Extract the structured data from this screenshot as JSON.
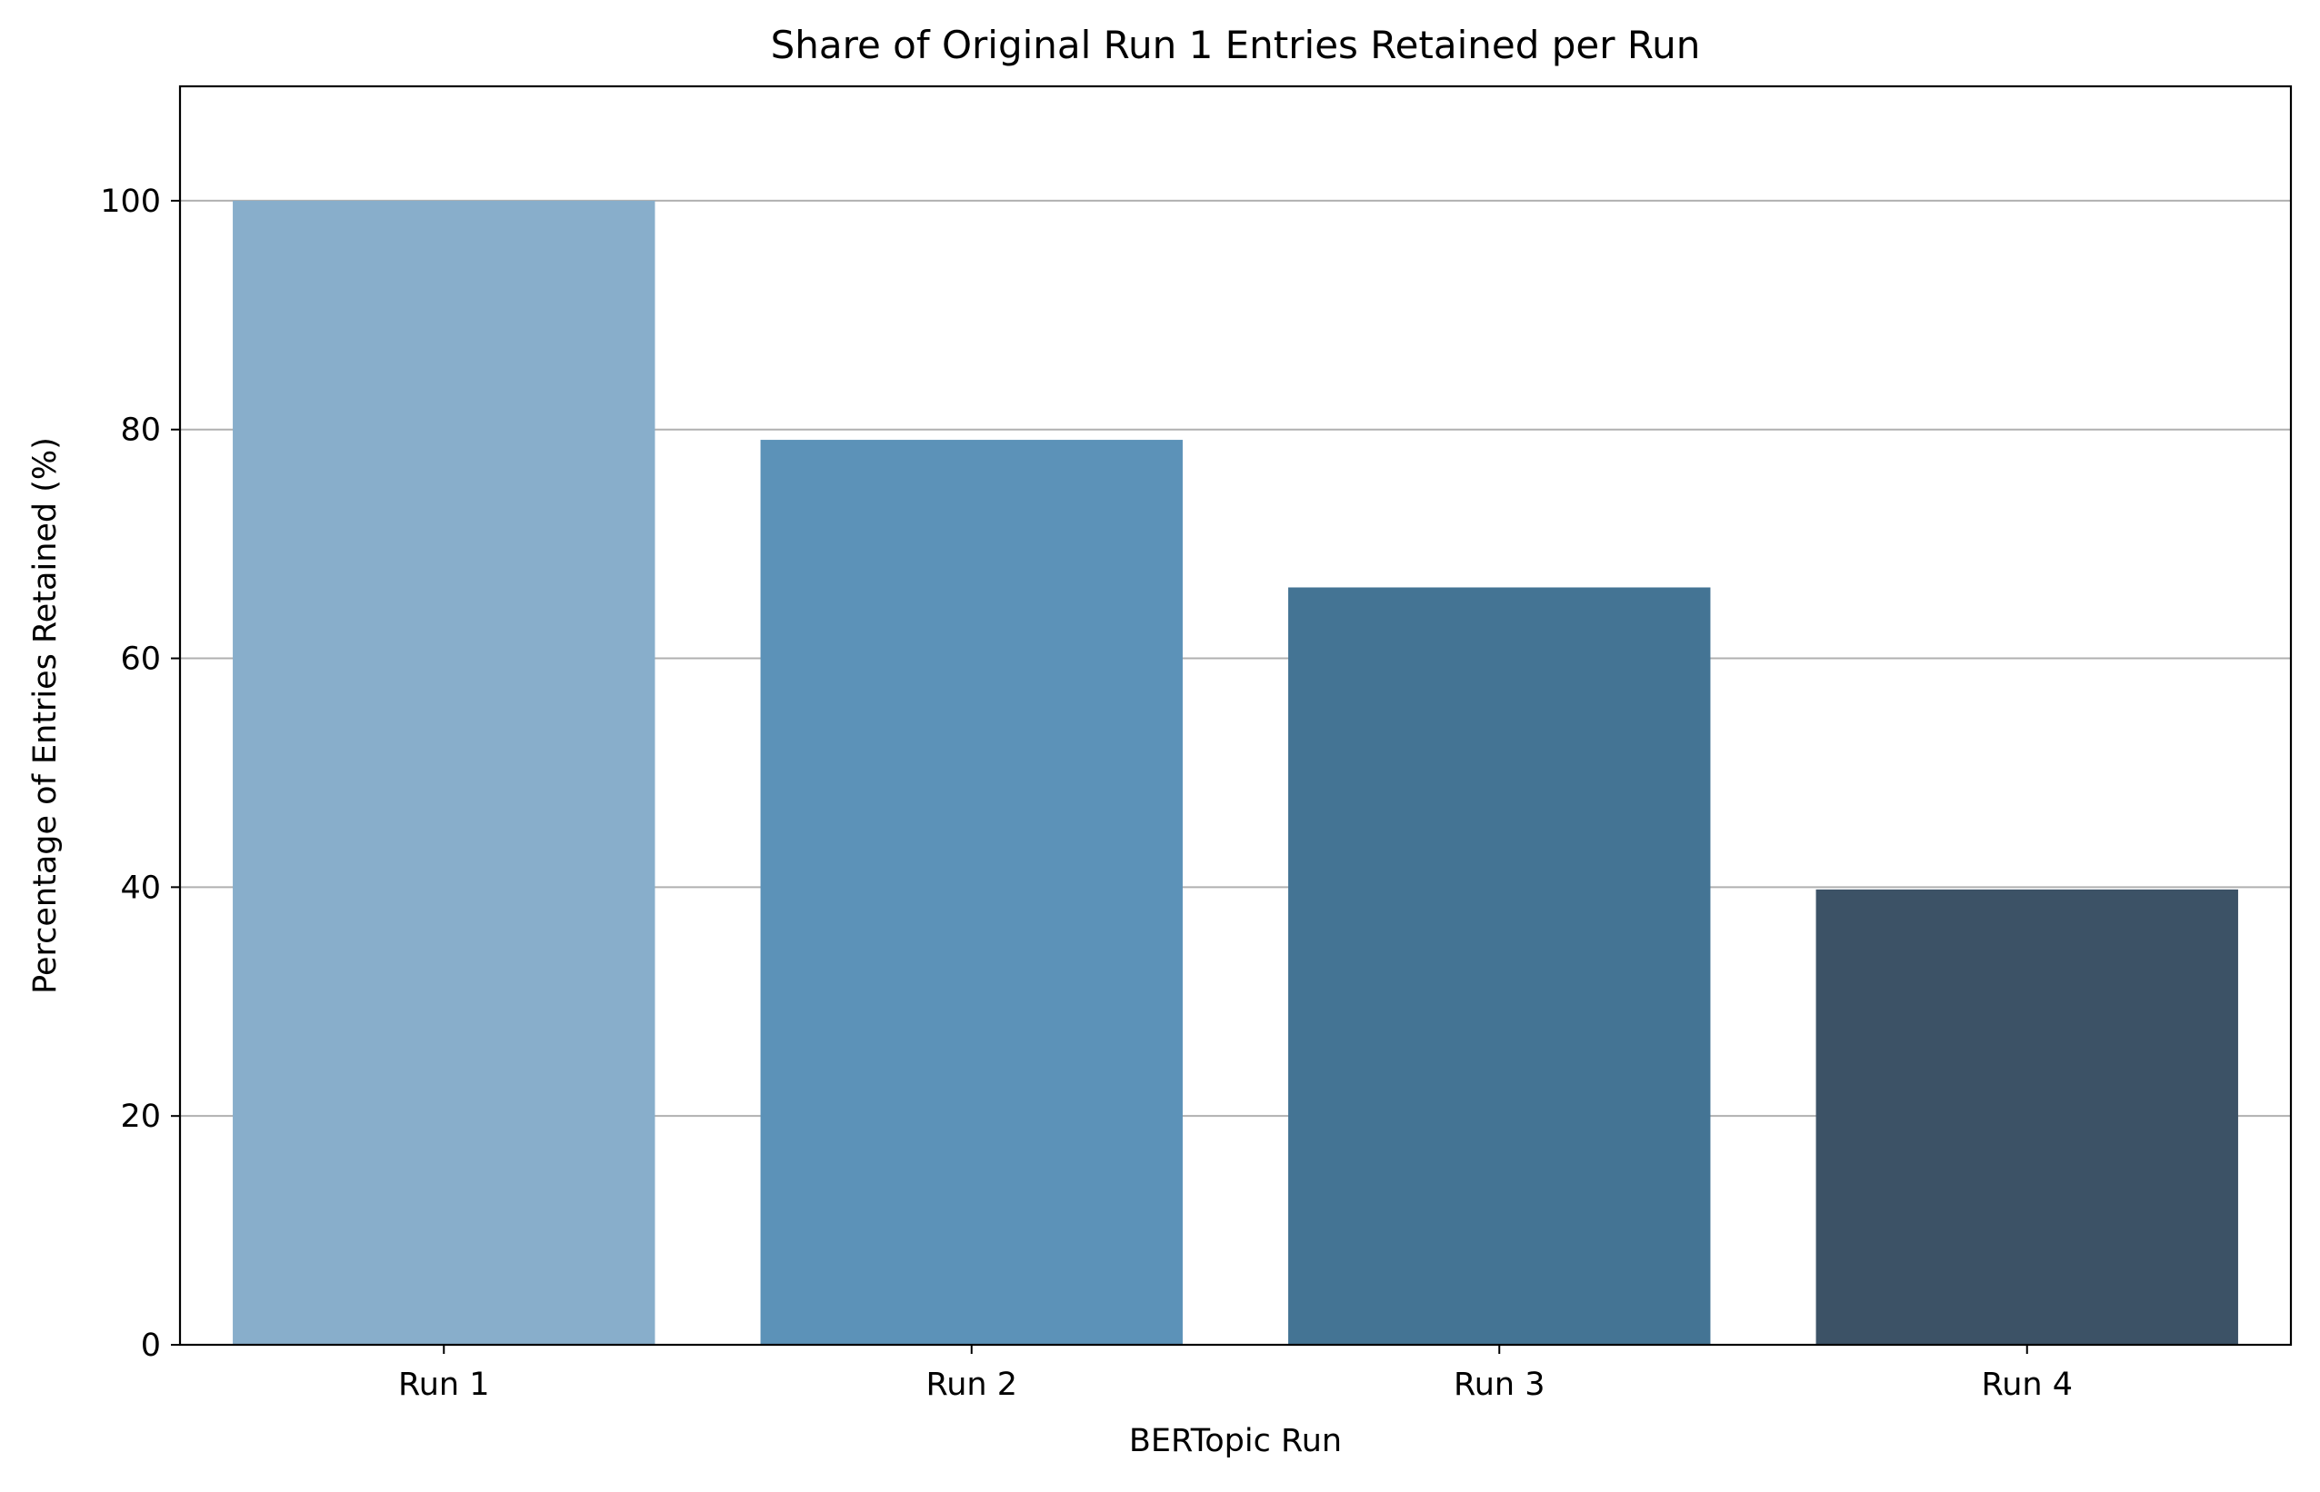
{
  "chart_data": {
    "type": "bar",
    "title": "Share of Original Run 1 Entries Retained per Run",
    "xlabel": "BERTopic Run",
    "ylabel": "Percentage of Entries Retained (%)",
    "categories": [
      "Run 1",
      "Run 2",
      "Run 3",
      "Run 4"
    ],
    "values": [
      100,
      79.1,
      66.2,
      39.8
    ],
    "colors": [
      "#88aecb",
      "#5c92b8",
      "#447494",
      "#3c5266"
    ],
    "ylim": [
      0,
      110
    ],
    "yticks": [
      0,
      20,
      40,
      60,
      80,
      100
    ],
    "ytick_labels": [
      "0",
      "20",
      "40",
      "60",
      "80",
      "100"
    ],
    "grid": "horizontal",
    "grid_color": "#b0b0b0",
    "legend": "none"
  }
}
